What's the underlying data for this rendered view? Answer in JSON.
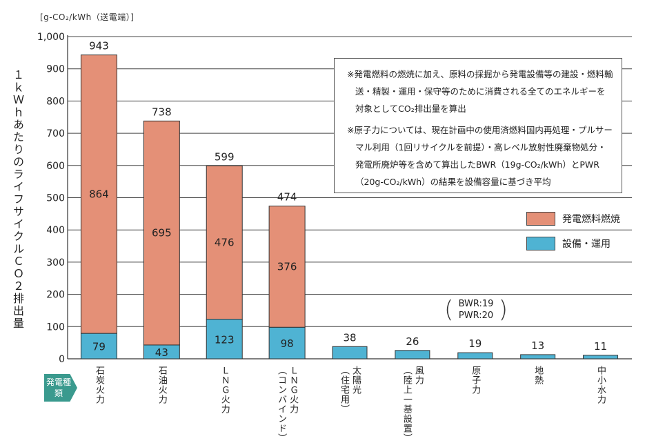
{
  "chart_data": {
    "type": "bar",
    "stacked": true,
    "unit_label": "[g-CO₂/kWh（送電端）]",
    "ylabel": "１ｋＷｈあたりのライフサイクルＣＯ２排出量",
    "ylim": [
      0,
      1000
    ],
    "yticks": [
      "0",
      "100",
      "200",
      "300",
      "400",
      "500",
      "600",
      "700",
      "800",
      "900",
      "1,000"
    ],
    "categories": [
      [
        "石炭火力"
      ],
      [
        "石油火力"
      ],
      [
        "ＬＮＧ火力"
      ],
      [
        "ＬＮＧ火力",
        "（コンバインド）"
      ],
      [
        "太陽光",
        "（住宅用）"
      ],
      [
        "風力",
        "（陸上一基設置）"
      ],
      [
        "原子力"
      ],
      [
        "地熱"
      ],
      [
        "中小水力"
      ]
    ],
    "series": [
      {
        "name": "設備・運用",
        "color": "#4fb3d3",
        "values": [
          79,
          43,
          123,
          98,
          38,
          26,
          19,
          13,
          11
        ]
      },
      {
        "name": "発電燃料燃焼",
        "color": "#e49077",
        "values": [
          864,
          695,
          476,
          376,
          null,
          null,
          null,
          null,
          null
        ]
      }
    ],
    "totals": [
      943,
      738,
      599,
      474,
      38,
      26,
      19,
      13,
      11
    ],
    "legend_position": "right",
    "grid": true
  },
  "category_badge": "発電種類",
  "notes": [
    "※発電燃料の燃焼に加え、原料の採掘から発電設備等の建設・燃料輸送・精製・運用・保守等のために消費される全てのエネルギーを対象としてCO₂排出量を算出",
    "※原子力については、現在計画中の使用済燃料国内再処理・プルサーマル利用（1回リサイクルを前提）・高レベル放射性廃棄物処分・発電所廃炉等を含めて算出したBWR（19g-CO₂/kWh）とPWR（20g-CO₂/kWh）の結果を設備容量に基づき平均"
  ],
  "bwr_line1": "BWR:19",
  "bwr_line2": "PWR:20",
  "paren_left": "(",
  "paren_right": ")"
}
